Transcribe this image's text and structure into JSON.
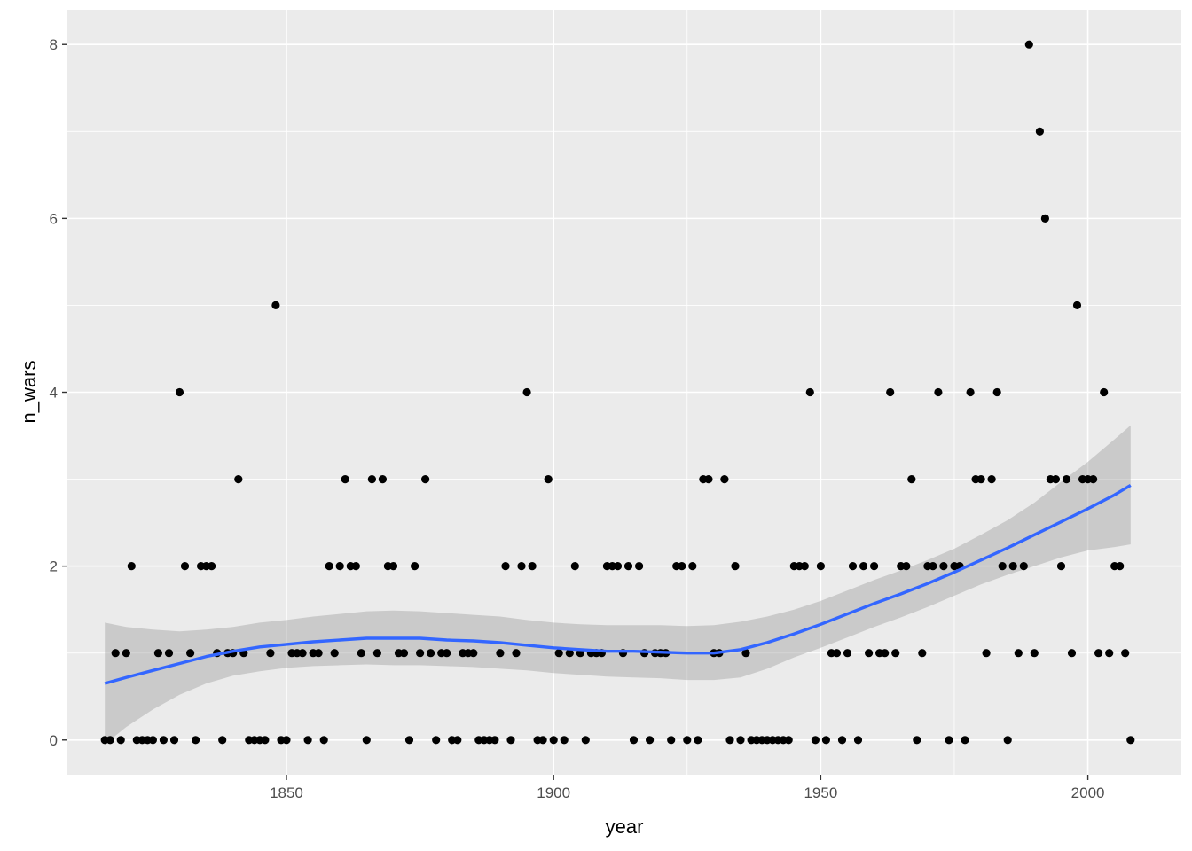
{
  "chart_data": {
    "type": "scatter",
    "xlabel": "year",
    "ylabel": "n_wars",
    "xlim": [
      1809,
      2017.5
    ],
    "ylim": [
      -0.4,
      8.4
    ],
    "x_ticks": [
      1850,
      1900,
      1950,
      2000
    ],
    "x_tick_labels": [
      "1850",
      "1900",
      "1950",
      "2000"
    ],
    "y_ticks": [
      0,
      2,
      4,
      6,
      8
    ],
    "y_tick_labels": [
      "0",
      "2",
      "4",
      "6",
      "8"
    ],
    "grid": true,
    "colors": {
      "panel": "#ebebeb",
      "grid": "#ffffff",
      "points": "#000000",
      "smooth_line": "#3366ff",
      "ribbon": "#999999"
    },
    "points": [
      [
        1816,
        0
      ],
      [
        1817,
        0
      ],
      [
        1818,
        1
      ],
      [
        1819,
        0
      ],
      [
        1820,
        1
      ],
      [
        1821,
        2
      ],
      [
        1822,
        0
      ],
      [
        1823,
        0
      ],
      [
        1824,
        0
      ],
      [
        1825,
        0
      ],
      [
        1826,
        1
      ],
      [
        1827,
        0
      ],
      [
        1828,
        1
      ],
      [
        1829,
        0
      ],
      [
        1830,
        4
      ],
      [
        1831,
        2
      ],
      [
        1832,
        1
      ],
      [
        1833,
        0
      ],
      [
        1834,
        2
      ],
      [
        1835,
        2
      ],
      [
        1836,
        2
      ],
      [
        1837,
        1
      ],
      [
        1838,
        0
      ],
      [
        1839,
        1
      ],
      [
        1840,
        1
      ],
      [
        1841,
        3
      ],
      [
        1842,
        1
      ],
      [
        1843,
        0
      ],
      [
        1844,
        0
      ],
      [
        1845,
        0
      ],
      [
        1846,
        0
      ],
      [
        1847,
        1
      ],
      [
        1848,
        5
      ],
      [
        1849,
        0
      ],
      [
        1850,
        0
      ],
      [
        1851,
        1
      ],
      [
        1852,
        1
      ],
      [
        1853,
        1
      ],
      [
        1854,
        0
      ],
      [
        1855,
        1
      ],
      [
        1856,
        1
      ],
      [
        1857,
        0
      ],
      [
        1858,
        2
      ],
      [
        1859,
        1
      ],
      [
        1860,
        2
      ],
      [
        1861,
        3
      ],
      [
        1862,
        2
      ],
      [
        1863,
        2
      ],
      [
        1864,
        1
      ],
      [
        1865,
        0
      ],
      [
        1866,
        3
      ],
      [
        1867,
        1
      ],
      [
        1868,
        3
      ],
      [
        1869,
        2
      ],
      [
        1870,
        2
      ],
      [
        1871,
        1
      ],
      [
        1872,
        1
      ],
      [
        1873,
        0
      ],
      [
        1874,
        2
      ],
      [
        1875,
        1
      ],
      [
        1876,
        3
      ],
      [
        1877,
        1
      ],
      [
        1878,
        0
      ],
      [
        1879,
        1
      ],
      [
        1880,
        1
      ],
      [
        1881,
        0
      ],
      [
        1882,
        0
      ],
      [
        1883,
        1
      ],
      [
        1884,
        1
      ],
      [
        1885,
        1
      ],
      [
        1886,
        0
      ],
      [
        1887,
        0
      ],
      [
        1888,
        0
      ],
      [
        1889,
        0
      ],
      [
        1890,
        1
      ],
      [
        1891,
        2
      ],
      [
        1892,
        0
      ],
      [
        1893,
        1
      ],
      [
        1894,
        2
      ],
      [
        1895,
        4
      ],
      [
        1896,
        2
      ],
      [
        1897,
        0
      ],
      [
        1898,
        0
      ],
      [
        1899,
        3
      ],
      [
        1900,
        0
      ],
      [
        1901,
        1
      ],
      [
        1902,
        0
      ],
      [
        1903,
        1
      ],
      [
        1904,
        2
      ],
      [
        1905,
        1
      ],
      [
        1906,
        0
      ],
      [
        1907,
        1
      ],
      [
        1908,
        1
      ],
      [
        1909,
        1
      ],
      [
        1910,
        2
      ],
      [
        1911,
        2
      ],
      [
        1912,
        2
      ],
      [
        1913,
        1
      ],
      [
        1914,
        2
      ],
      [
        1915,
        0
      ],
      [
        1916,
        2
      ],
      [
        1917,
        1
      ],
      [
        1918,
        0
      ],
      [
        1919,
        1
      ],
      [
        1920,
        1
      ],
      [
        1921,
        1
      ],
      [
        1922,
        0
      ],
      [
        1923,
        2
      ],
      [
        1924,
        2
      ],
      [
        1925,
        0
      ],
      [
        1926,
        2
      ],
      [
        1927,
        0
      ],
      [
        1928,
        3
      ],
      [
        1929,
        3
      ],
      [
        1930,
        1
      ],
      [
        1931,
        1
      ],
      [
        1932,
        3
      ],
      [
        1933,
        0
      ],
      [
        1934,
        2
      ],
      [
        1935,
        0
      ],
      [
        1936,
        1
      ],
      [
        1937,
        0
      ],
      [
        1938,
        0
      ],
      [
        1939,
        0
      ],
      [
        1940,
        0
      ],
      [
        1941,
        0
      ],
      [
        1942,
        0
      ],
      [
        1943,
        0
      ],
      [
        1944,
        0
      ],
      [
        1945,
        2
      ],
      [
        1946,
        2
      ],
      [
        1947,
        2
      ],
      [
        1948,
        4
      ],
      [
        1949,
        0
      ],
      [
        1950,
        2
      ],
      [
        1951,
        0
      ],
      [
        1952,
        1
      ],
      [
        1953,
        1
      ],
      [
        1954,
        0
      ],
      [
        1955,
        1
      ],
      [
        1956,
        2
      ],
      [
        1957,
        0
      ],
      [
        1958,
        2
      ],
      [
        1959,
        1
      ],
      [
        1960,
        2
      ],
      [
        1961,
        1
      ],
      [
        1962,
        1
      ],
      [
        1963,
        4
      ],
      [
        1964,
        1
      ],
      [
        1965,
        2
      ],
      [
        1966,
        2
      ],
      [
        1967,
        3
      ],
      [
        1968,
        0
      ],
      [
        1969,
        1
      ],
      [
        1970,
        2
      ],
      [
        1971,
        2
      ],
      [
        1972,
        4
      ],
      [
        1973,
        2
      ],
      [
        1974,
        0
      ],
      [
        1975,
        2
      ],
      [
        1976,
        2
      ],
      [
        1977,
        0
      ],
      [
        1978,
        4
      ],
      [
        1979,
        3
      ],
      [
        1980,
        3
      ],
      [
        1981,
        1
      ],
      [
        1982,
        3
      ],
      [
        1983,
        4
      ],
      [
        1984,
        2
      ],
      [
        1985,
        0
      ],
      [
        1986,
        2
      ],
      [
        1987,
        1
      ],
      [
        1988,
        2
      ],
      [
        1989,
        8
      ],
      [
        1990,
        1
      ],
      [
        1991,
        7
      ],
      [
        1992,
        6
      ],
      [
        1993,
        3
      ],
      [
        1994,
        3
      ],
      [
        1995,
        2
      ],
      [
        1996,
        3
      ],
      [
        1997,
        1
      ],
      [
        1998,
        5
      ],
      [
        1999,
        3
      ],
      [
        2000,
        3
      ],
      [
        2001,
        3
      ],
      [
        2002,
        1
      ],
      [
        2003,
        4
      ],
      [
        2004,
        1
      ],
      [
        2005,
        2
      ],
      [
        2006,
        2
      ],
      [
        2007,
        1
      ],
      [
        2008,
        0
      ]
    ],
    "smooth": [
      {
        "x": 1816,
        "y": 0.65,
        "lo": -0.05,
        "hi": 1.35
      },
      {
        "x": 1820,
        "y": 0.72,
        "lo": 0.15,
        "hi": 1.3
      },
      {
        "x": 1825,
        "y": 0.8,
        "lo": 0.35,
        "hi": 1.27
      },
      {
        "x": 1830,
        "y": 0.88,
        "lo": 0.52,
        "hi": 1.25
      },
      {
        "x": 1835,
        "y": 0.96,
        "lo": 0.65,
        "hi": 1.27
      },
      {
        "x": 1840,
        "y": 1.02,
        "lo": 0.74,
        "hi": 1.3
      },
      {
        "x": 1845,
        "y": 1.07,
        "lo": 0.79,
        "hi": 1.35
      },
      {
        "x": 1850,
        "y": 1.1,
        "lo": 0.83,
        "hi": 1.38
      },
      {
        "x": 1855,
        "y": 1.13,
        "lo": 0.85,
        "hi": 1.42
      },
      {
        "x": 1860,
        "y": 1.15,
        "lo": 0.86,
        "hi": 1.45
      },
      {
        "x": 1865,
        "y": 1.17,
        "lo": 0.87,
        "hi": 1.48
      },
      {
        "x": 1870,
        "y": 1.17,
        "lo": 0.86,
        "hi": 1.49
      },
      {
        "x": 1875,
        "y": 1.17,
        "lo": 0.86,
        "hi": 1.48
      },
      {
        "x": 1880,
        "y": 1.15,
        "lo": 0.85,
        "hi": 1.46
      },
      {
        "x": 1885,
        "y": 1.14,
        "lo": 0.84,
        "hi": 1.44
      },
      {
        "x": 1890,
        "y": 1.12,
        "lo": 0.82,
        "hi": 1.42
      },
      {
        "x": 1895,
        "y": 1.09,
        "lo": 0.8,
        "hi": 1.38
      },
      {
        "x": 1900,
        "y": 1.06,
        "lo": 0.77,
        "hi": 1.35
      },
      {
        "x": 1905,
        "y": 1.04,
        "lo": 0.75,
        "hi": 1.33
      },
      {
        "x": 1910,
        "y": 1.02,
        "lo": 0.73,
        "hi": 1.32
      },
      {
        "x": 1915,
        "y": 1.02,
        "lo": 0.72,
        "hi": 1.32
      },
      {
        "x": 1920,
        "y": 1.01,
        "lo": 0.71,
        "hi": 1.32
      },
      {
        "x": 1925,
        "y": 1.0,
        "lo": 0.69,
        "hi": 1.31
      },
      {
        "x": 1930,
        "y": 1.0,
        "lo": 0.69,
        "hi": 1.32
      },
      {
        "x": 1935,
        "y": 1.04,
        "lo": 0.72,
        "hi": 1.36
      },
      {
        "x": 1940,
        "y": 1.12,
        "lo": 0.82,
        "hi": 1.42
      },
      {
        "x": 1945,
        "y": 1.22,
        "lo": 0.95,
        "hi": 1.5
      },
      {
        "x": 1950,
        "y": 1.33,
        "lo": 1.06,
        "hi": 1.6
      },
      {
        "x": 1955,
        "y": 1.45,
        "lo": 1.18,
        "hi": 1.72
      },
      {
        "x": 1960,
        "y": 1.57,
        "lo": 1.3,
        "hi": 1.84
      },
      {
        "x": 1965,
        "y": 1.68,
        "lo": 1.41,
        "hi": 1.95
      },
      {
        "x": 1970,
        "y": 1.8,
        "lo": 1.53,
        "hi": 2.07
      },
      {
        "x": 1975,
        "y": 1.93,
        "lo": 1.66,
        "hi": 2.2
      },
      {
        "x": 1980,
        "y": 2.07,
        "lo": 1.79,
        "hi": 2.36
      },
      {
        "x": 1985,
        "y": 2.21,
        "lo": 1.9,
        "hi": 2.53
      },
      {
        "x": 1990,
        "y": 2.36,
        "lo": 2.0,
        "hi": 2.73
      },
      {
        "x": 1995,
        "y": 2.51,
        "lo": 2.1,
        "hi": 2.97
      },
      {
        "x": 2000,
        "y": 2.66,
        "lo": 2.18,
        "hi": 3.2
      },
      {
        "x": 2005,
        "y": 2.82,
        "lo": 2.22,
        "hi": 3.46
      },
      {
        "x": 2008,
        "y": 2.93,
        "lo": 2.25,
        "hi": 3.62
      }
    ]
  }
}
